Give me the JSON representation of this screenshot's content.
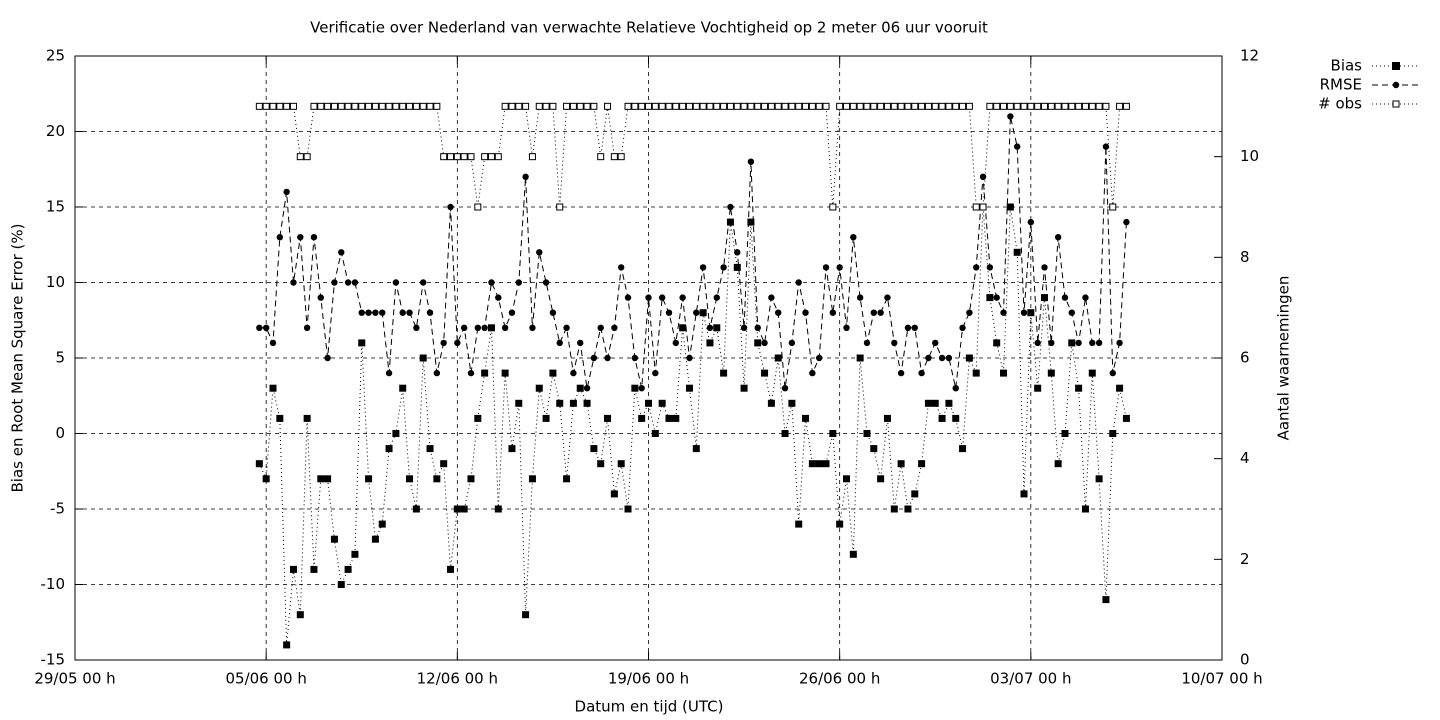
{
  "chart_data": {
    "type": "line",
    "title": "Verificatie over Nederland van verwachte Relatieve Vochtigheid op 2 meter 06 uur vooruit",
    "xlabel": "Datum en tijd (UTC)",
    "ylabel": "Bias en Root Mean Square Error (%)",
    "y2label": "Aantal waarnemingen",
    "legend": "outside-top-right",
    "grid": true,
    "xlim": [
      "29/05 00 h",
      "10/07 00 h"
    ],
    "xticks": [
      "29/05 00 h",
      "05/06 00 h",
      "12/06 00 h",
      "19/06 00 h",
      "26/06 00 h",
      "03/07 00 h",
      "10/07 00 h"
    ],
    "ylim": [
      -15,
      25
    ],
    "yticks": [
      -15,
      -10,
      -5,
      0,
      5,
      10,
      15,
      20,
      25
    ],
    "y2lim": [
      0,
      12
    ],
    "y2ticks": [
      0,
      2,
      4,
      6,
      8,
      10,
      12
    ],
    "x": [
      "04/06 18 h",
      "05/06 00 h",
      "05/06 06 h",
      "05/06 12 h",
      "05/06 18 h",
      "06/06 00 h",
      "06/06 06 h",
      "06/06 12 h",
      "06/06 18 h",
      "07/06 00 h",
      "07/06 06 h",
      "07/06 12 h",
      "07/06 18 h",
      "08/06 00 h",
      "08/06 06 h",
      "08/06 12 h",
      "08/06 18 h",
      "09/06 00 h",
      "09/06 06 h",
      "09/06 12 h",
      "09/06 18 h",
      "10/06 00 h",
      "10/06 06 h",
      "10/06 12 h",
      "10/06 18 h",
      "11/06 00 h",
      "11/06 06 h",
      "11/06 12 h",
      "11/06 18 h",
      "12/06 00 h",
      "12/06 06 h",
      "12/06 12 h",
      "12/06 18 h",
      "13/06 00 h",
      "13/06 06 h",
      "13/06 12 h",
      "13/06 18 h",
      "14/06 00 h",
      "14/06 06 h",
      "14/06 12 h",
      "14/06 18 h",
      "15/06 00 h",
      "15/06 06 h",
      "15/06 12 h",
      "15/06 18 h",
      "16/06 00 h",
      "16/06 06 h",
      "16/06 12 h",
      "16/06 18 h",
      "17/06 00 h",
      "17/06 06 h",
      "17/06 12 h",
      "17/06 18 h",
      "18/06 00 h",
      "18/06 06 h",
      "18/06 12 h",
      "18/06 18 h",
      "19/06 00 h",
      "19/06 06 h",
      "19/06 12 h",
      "19/06 18 h",
      "20/06 00 h",
      "20/06 06 h",
      "20/06 12 h",
      "20/06 18 h",
      "21/06 00 h",
      "21/06 06 h",
      "21/06 12 h",
      "21/06 18 h",
      "22/06 00 h",
      "22/06 06 h",
      "22/06 12 h",
      "22/06 18 h",
      "23/06 00 h",
      "23/06 06 h",
      "23/06 12 h",
      "23/06 18 h",
      "24/06 00 h",
      "24/06 06 h",
      "24/06 12 h",
      "24/06 18 h",
      "25/06 00 h",
      "25/06 06 h",
      "25/06 12 h",
      "25/06 18 h",
      "26/06 00 h",
      "26/06 06 h",
      "26/06 12 h",
      "26/06 18 h",
      "27/06 00 h",
      "27/06 06 h",
      "27/06 12 h",
      "27/06 18 h",
      "28/06 00 h",
      "28/06 06 h",
      "28/06 12 h",
      "28/06 18 h",
      "29/06 00 h",
      "29/06 06 h",
      "29/06 12 h",
      "29/06 18 h",
      "30/06 00 h",
      "30/06 06 h",
      "30/06 12 h",
      "30/06 18 h",
      "01/07 00 h",
      "01/07 06 h",
      "01/07 12 h",
      "01/07 18 h",
      "02/07 00 h",
      "02/07 06 h",
      "02/07 12 h",
      "02/07 18 h",
      "03/07 00 h",
      "03/07 06 h",
      "03/07 12 h",
      "03/07 18 h",
      "04/07 00 h",
      "04/07 06 h",
      "04/07 12 h",
      "04/07 18 h",
      "05/07 00 h",
      "05/07 06 h",
      "05/07 12 h",
      "05/07 18 h",
      "06/07 00 h",
      "06/07 06 h",
      "06/07 12 h"
    ],
    "series": [
      {
        "name": "Bias",
        "color": "#000000",
        "line_style": "dotted",
        "marker": "filled-square",
        "values": [
          -2,
          -3,
          3,
          1,
          -14,
          -9,
          -12,
          1,
          -9,
          -3,
          -3,
          -7,
          -10,
          -9,
          -8,
          6,
          -3,
          -7,
          -6,
          -1,
          0,
          3,
          -3,
          -5,
          5,
          -1,
          -3,
          -2,
          -9,
          -5,
          -5,
          -3,
          1,
          4,
          7,
          -5,
          4,
          -1,
          2,
          -12,
          -3,
          3,
          1,
          4,
          2,
          -3,
          2,
          3,
          2,
          -1,
          -2,
          1,
          -4,
          -2,
          -5,
          3,
          1,
          2,
          0,
          2,
          1,
          1,
          7,
          3,
          -1,
          8,
          6,
          7,
          4,
          14,
          11,
          3,
          14,
          6,
          4,
          2,
          5,
          0,
          2,
          -6,
          1,
          -2,
          -2,
          -2,
          0,
          -6,
          -3,
          -8,
          5,
          0,
          -1,
          -3,
          1,
          -5,
          -2,
          -5,
          -4,
          -2,
          2,
          2,
          1,
          2,
          1,
          -1,
          5,
          4,
          15,
          9,
          6,
          4,
          15,
          12,
          -4,
          8,
          3,
          9,
          4,
          -2,
          0,
          6,
          3,
          -5,
          4,
          -3,
          -11,
          0,
          3,
          1
        ]
      },
      {
        "name": "RMSE",
        "color": "#000000",
        "line_style": "dashed",
        "marker": "filled-circle",
        "values": [
          7,
          7,
          6,
          13,
          16,
          10,
          13,
          7,
          13,
          9,
          5,
          10,
          12,
          10,
          10,
          8,
          8,
          8,
          8,
          4,
          10,
          8,
          8,
          7,
          10,
          8,
          4,
          6,
          15,
          6,
          7,
          4,
          7,
          7,
          10,
          9,
          7,
          8,
          10,
          17,
          7,
          12,
          10,
          8,
          6,
          7,
          4,
          6,
          3,
          5,
          7,
          5,
          7,
          11,
          9,
          5,
          3,
          9,
          4,
          9,
          8,
          6,
          9,
          5,
          8,
          11,
          7,
          9,
          11,
          15,
          12,
          7,
          18,
          7,
          6,
          9,
          8,
          3,
          6,
          10,
          8,
          4,
          5,
          11,
          8,
          11,
          7,
          13,
          9,
          6,
          8,
          8,
          9,
          6,
          4,
          7,
          7,
          4,
          5,
          6,
          5,
          5,
          3,
          7,
          8,
          11,
          17,
          11,
          9,
          8,
          21,
          19,
          8,
          14,
          6,
          11,
          6,
          13,
          9,
          8,
          6,
          9,
          6,
          6,
          19,
          4,
          6,
          14
        ]
      },
      {
        "name": "# obs",
        "color": "#000000",
        "line_style": "dotted",
        "marker": "open-square",
        "axis": "y2",
        "values": [
          11,
          11,
          11,
          11,
          11,
          11,
          10,
          10,
          11,
          11,
          11,
          11,
          11,
          11,
          11,
          11,
          11,
          11,
          11,
          11,
          11,
          11,
          11,
          11,
          11,
          11,
          11,
          10,
          10,
          10,
          10,
          10,
          9,
          10,
          10,
          10,
          11,
          11,
          11,
          11,
          10,
          11,
          11,
          11,
          9,
          11,
          11,
          11,
          11,
          11,
          10,
          11,
          10,
          10,
          11,
          11,
          11,
          11,
          11,
          11,
          11,
          11,
          11,
          11,
          11,
          11,
          11,
          11,
          11,
          11,
          11,
          11,
          11,
          11,
          11,
          11,
          11,
          11,
          11,
          11,
          11,
          11,
          11,
          11,
          9,
          11,
          11,
          11,
          11,
          11,
          11,
          11,
          11,
          11,
          11,
          11,
          11,
          11,
          11,
          11,
          11,
          11,
          11,
          11,
          11,
          9,
          9,
          11,
          11,
          11,
          11,
          11,
          11,
          11,
          11,
          11,
          11,
          11,
          11,
          11,
          11,
          11,
          11,
          11,
          11,
          9,
          11,
          11
        ]
      }
    ]
  }
}
